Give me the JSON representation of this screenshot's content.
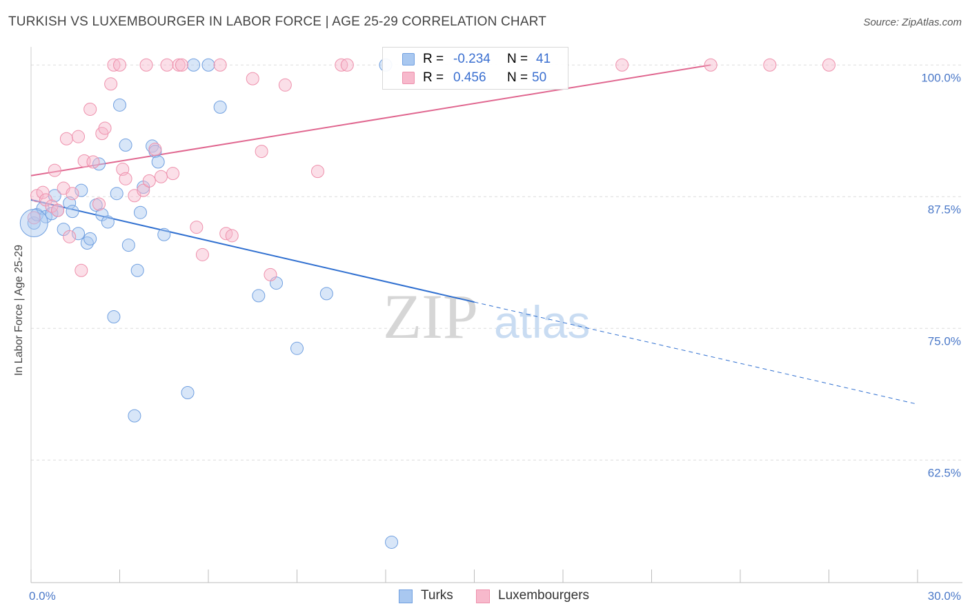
{
  "title": "TURKISH VS LUXEMBOURGER IN LABOR FORCE | AGE 25-29 CORRELATION CHART",
  "source": "Source: ZipAtlas.com",
  "watermark": {
    "zip": "ZIP",
    "atlas": "atlas"
  },
  "legend": {
    "r_label": "R =",
    "n_label": "N =",
    "series": [
      {
        "name": "Turks",
        "r": "-0.234",
        "n": "41",
        "fill": "#a9c8f0",
        "stroke": "#6f9fe0"
      },
      {
        "name": "Luxembourgers",
        "r": "0.456",
        "n": "50",
        "fill": "#f7b9cc",
        "stroke": "#ee8fab"
      }
    ]
  },
  "chart_data": {
    "type": "scatter",
    "title": "TURKISH VS LUXEMBOURGER IN LABOR FORCE | AGE 25-29 CORRELATION CHART",
    "xlabel": "",
    "ylabel": "In Labor Force | Age 25-29",
    "xlim": [
      0,
      30
    ],
    "ylim": [
      51,
      101
    ],
    "x_tick_labels": [
      "0.0%",
      "30.0%"
    ],
    "y_ticks": [
      62.5,
      75.0,
      87.5,
      100.0
    ],
    "y_tick_labels": [
      "62.5%",
      "75.0%",
      "87.5%",
      "100.0%"
    ],
    "series": [
      {
        "name": "Turks",
        "color": "#6f9fe0",
        "trend": {
          "x0": 0,
          "y0": 87.2,
          "x1": 15,
          "y1": 77.5,
          "dash_to_x": 30,
          "dash_to_y": 67.8,
          "color": "#2f6fd0"
        },
        "points": [
          [
            0.1,
            85.0
          ],
          [
            0.2,
            85.8
          ],
          [
            0.4,
            86.4
          ],
          [
            0.5,
            85.6
          ],
          [
            0.7,
            85.9
          ],
          [
            0.8,
            87.6
          ],
          [
            0.9,
            86.2
          ],
          [
            1.1,
            84.4
          ],
          [
            1.3,
            86.9
          ],
          [
            1.4,
            86.1
          ],
          [
            1.6,
            84.0
          ],
          [
            1.7,
            88.1
          ],
          [
            1.9,
            83.1
          ],
          [
            2.0,
            83.5
          ],
          [
            2.2,
            86.7
          ],
          [
            2.3,
            90.6
          ],
          [
            2.4,
            85.8
          ],
          [
            2.6,
            85.1
          ],
          [
            2.8,
            76.1
          ],
          [
            2.9,
            87.8
          ],
          [
            3.0,
            96.2
          ],
          [
            3.2,
            92.4
          ],
          [
            3.3,
            82.9
          ],
          [
            3.6,
            80.5
          ],
          [
            3.7,
            86.0
          ],
          [
            3.8,
            88.4
          ],
          [
            4.1,
            92.3
          ],
          [
            4.2,
            91.8
          ],
          [
            4.3,
            90.8
          ],
          [
            4.5,
            83.9
          ],
          [
            5.3,
            68.9
          ],
          [
            5.5,
            100.0
          ],
          [
            6.0,
            100.0
          ],
          [
            6.4,
            96.0
          ],
          [
            7.7,
            78.1
          ],
          [
            8.3,
            79.3
          ],
          [
            9.0,
            73.1
          ],
          [
            10.0,
            78.3
          ],
          [
            12.0,
            100.0
          ],
          [
            12.2,
            54.7
          ],
          [
            3.5,
            66.7
          ]
        ]
      },
      {
        "name": "Luxembourgers",
        "color": "#ee8fab",
        "trend": {
          "x0": 0,
          "y0": 89.5,
          "x1": 23,
          "y1": 100.0,
          "color": "#e0668f"
        },
        "points": [
          [
            0.1,
            85.5
          ],
          [
            0.2,
            87.6
          ],
          [
            0.4,
            87.9
          ],
          [
            0.5,
            87.2
          ],
          [
            0.7,
            86.6
          ],
          [
            0.8,
            90.0
          ],
          [
            0.9,
            86.2
          ],
          [
            1.1,
            88.3
          ],
          [
            1.2,
            93.0
          ],
          [
            1.3,
            83.7
          ],
          [
            1.4,
            87.8
          ],
          [
            1.6,
            93.2
          ],
          [
            1.7,
            80.5
          ],
          [
            1.8,
            90.9
          ],
          [
            2.0,
            95.8
          ],
          [
            2.1,
            90.8
          ],
          [
            2.3,
            86.8
          ],
          [
            2.4,
            93.5
          ],
          [
            2.5,
            94.0
          ],
          [
            2.7,
            98.2
          ],
          [
            2.8,
            100.0
          ],
          [
            3.0,
            100.0
          ],
          [
            3.1,
            90.1
          ],
          [
            3.2,
            89.2
          ],
          [
            3.5,
            87.6
          ],
          [
            3.8,
            88.1
          ],
          [
            3.9,
            100.0
          ],
          [
            4.0,
            89.0
          ],
          [
            4.2,
            92.0
          ],
          [
            4.4,
            89.4
          ],
          [
            4.6,
            100.0
          ],
          [
            4.8,
            89.7
          ],
          [
            5.0,
            100.0
          ],
          [
            5.1,
            100.0
          ],
          [
            5.6,
            84.6
          ],
          [
            5.8,
            82.0
          ],
          [
            6.4,
            100.0
          ],
          [
            6.6,
            84.0
          ],
          [
            6.8,
            83.8
          ],
          [
            7.5,
            98.7
          ],
          [
            7.8,
            91.8
          ],
          [
            8.1,
            80.1
          ],
          [
            8.6,
            98.1
          ],
          [
            9.7,
            89.9
          ],
          [
            10.5,
            100.0
          ],
          [
            10.7,
            100.0
          ],
          [
            20.0,
            100.0
          ],
          [
            23.0,
            100.0
          ],
          [
            25.0,
            100.0
          ],
          [
            27.0,
            100.0
          ]
        ]
      }
    ]
  }
}
